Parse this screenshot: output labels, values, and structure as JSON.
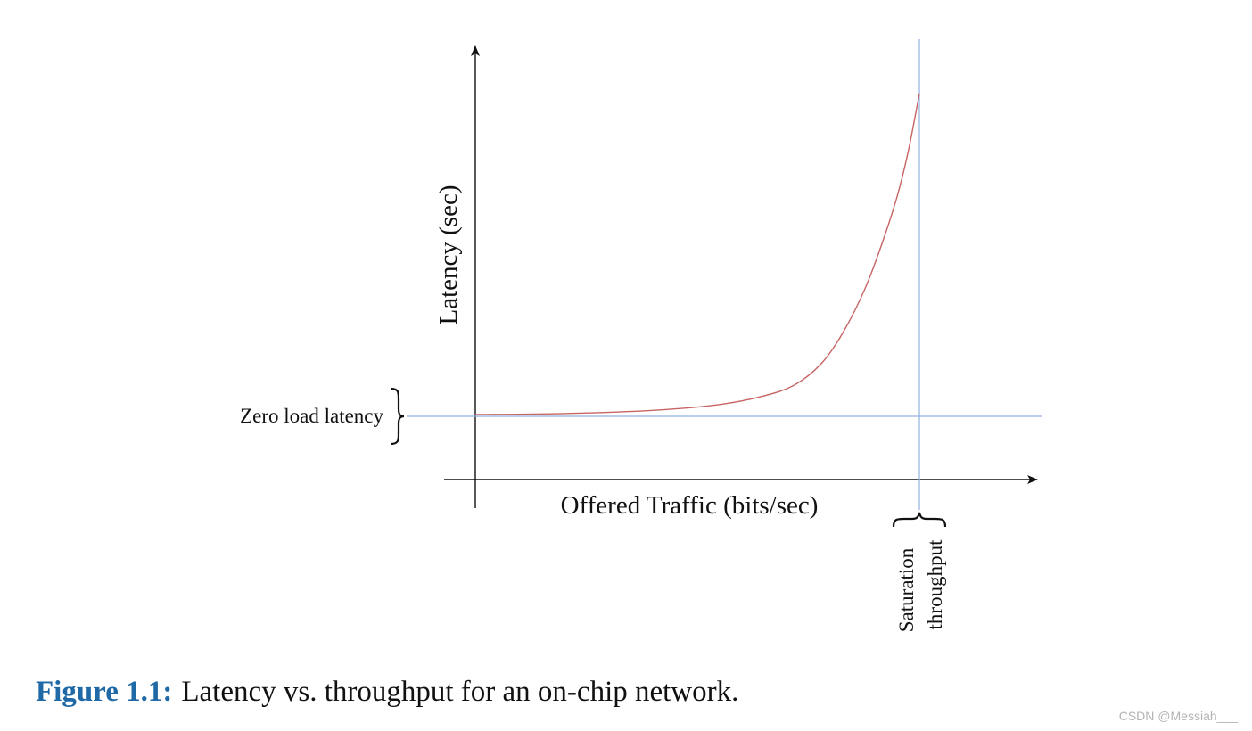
{
  "chart_data": {
    "type": "line",
    "title": "",
    "xlabel": "Offered Traffic (bits/sec)",
    "ylabel": "Latency (sec)",
    "x_ticks": [],
    "y_ticks": [],
    "xlim": [
      0,
      1.1
    ],
    "ylim": [
      -0.1,
      1.1
    ],
    "grid": false,
    "legend": "none",
    "series": [
      {
        "x": [
          0,
          0.2,
          0.4,
          0.55,
          0.65,
          0.72,
          0.78,
          0.83,
          0.88,
          0.92,
          0.95,
          0.975,
          1.0
        ],
        "y": [
          0,
          0.003,
          0.013,
          0.031,
          0.058,
          0.093,
          0.16,
          0.26,
          0.4,
          0.55,
          0.68,
          0.82,
          1.0
        ]
      }
    ],
    "reference_lines": [
      {
        "axis": "y",
        "value": 0,
        "label": "Zero load latency"
      },
      {
        "axis": "x",
        "value": 1.0,
        "label_lines": [
          "Saturation",
          "throughput"
        ]
      }
    ],
    "colors": {
      "curve": "#c86464",
      "reference": "#92b2e0",
      "axis": "#111111"
    }
  },
  "caption": {
    "label": "Figure 1.1:",
    "text": "Latency vs. throughput for an on-chip network.",
    "label_color": "#1f6aa6"
  },
  "watermark": "CSDN @Messiah___"
}
